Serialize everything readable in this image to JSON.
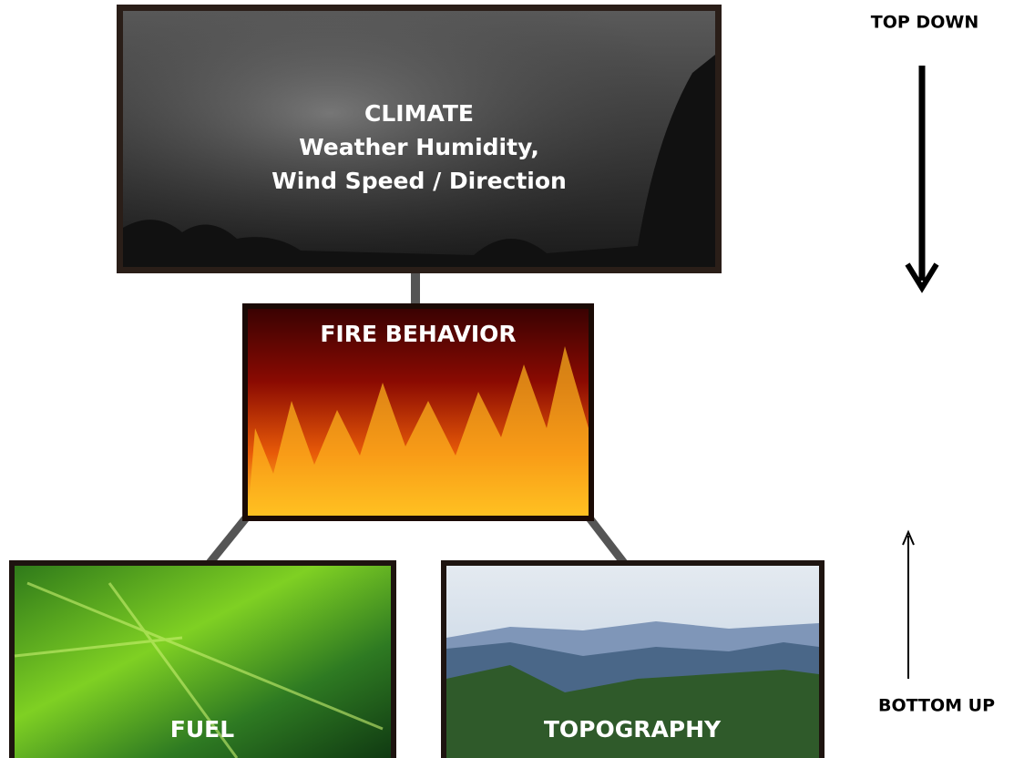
{
  "nodes": [
    {
      "lines": [
        "CLIMATE",
        "Weather Humidity,",
        "Wind Speed / Direction"
      ]
    },
    {
      "label": "FIRE BEHAVIOR"
    },
    {
      "label": "FUEL"
    },
    {
      "label": "TOPOGRAPHY"
    }
  ],
  "labels": {
    "top_down": "TOP DOWN",
    "bottom_up": "BOTTOM UP"
  }
}
